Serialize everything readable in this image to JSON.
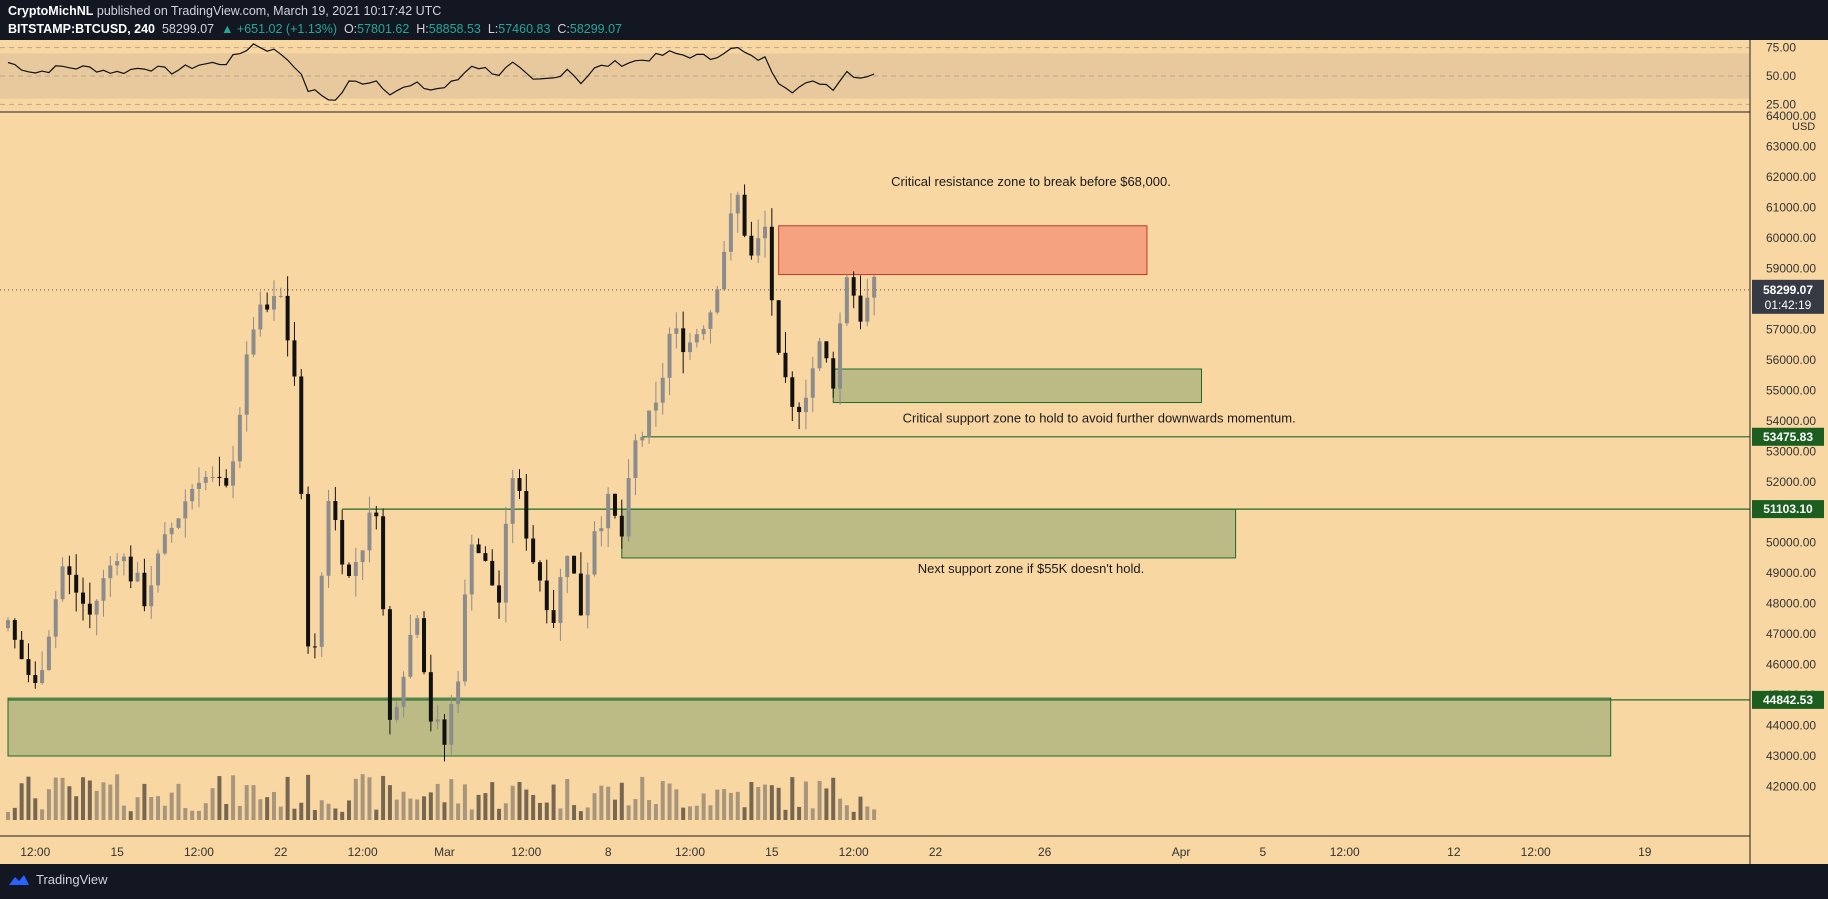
{
  "header": {
    "line1_author": "CryptoMichNL",
    "line1_rest": " published on TradingView.com, March 19, 2021 10:17:42 UTC",
    "symbol": "BITSTAMP:BTCUSD, 240",
    "last": "58299.07",
    "change": "+651.02 (+1.13%)",
    "o_label": "O:",
    "o_val": "57801.62",
    "h_label": "H:",
    "h_val": "58858.53",
    "l_label": "L:",
    "l_val": "57460.83",
    "c_label": "C:",
    "c_val": "58299.07"
  },
  "footer": {
    "brand": "TradingView"
  },
  "colors": {
    "background": "#f9d7a2",
    "resistance": "#f4a27f",
    "support": "#bcba85",
    "support_line": "#1e6b2a",
    "label_green": "#1b5e20",
    "current_price_tag": "#363a45"
  },
  "chart_data": {
    "type": "candlestick",
    "symbol": "BITSTAMP:BTCUSD",
    "interval": "240",
    "currency": "USD",
    "ylim": [
      40900,
      64200
    ],
    "y_ticks": [
      42000,
      43000,
      44000,
      45000,
      46000,
      47000,
      48000,
      49000,
      50000,
      51000,
      52000,
      53000,
      54000,
      55000,
      56000,
      57000,
      58000,
      59000,
      60000,
      61000,
      62000,
      63000,
      64000
    ],
    "x_ticks": [
      {
        "label": "12:00",
        "i": 4
      },
      {
        "label": "15",
        "i": 16
      },
      {
        "label": "12:00",
        "i": 28
      },
      {
        "label": "22",
        "i": 40
      },
      {
        "label": "12:00",
        "i": 52
      },
      {
        "label": "Mar",
        "i": 64
      },
      {
        "label": "12:00",
        "i": 76
      },
      {
        "label": "8",
        "i": 88
      },
      {
        "label": "12:00",
        "i": 100
      },
      {
        "label": "15",
        "i": 112
      },
      {
        "label": "12:00",
        "i": 124
      },
      {
        "label": "22",
        "i": 136
      },
      {
        "label": "26",
        "i": 152
      },
      {
        "label": "Apr",
        "i": 172
      },
      {
        "label": "5",
        "i": 184
      },
      {
        "label": "12:00",
        "i": 196
      },
      {
        "label": "12",
        "i": 212
      },
      {
        "label": "12:00",
        "i": 224
      },
      {
        "label": "19",
        "i": 240
      }
    ],
    "price_path": [
      [
        0,
        47200
      ],
      [
        4,
        45200
      ],
      [
        8,
        49200
      ],
      [
        12,
        47600
      ],
      [
        16,
        49800
      ],
      [
        20,
        48200
      ],
      [
        24,
        50500
      ],
      [
        28,
        52300
      ],
      [
        32,
        51600
      ],
      [
        36,
        57200
      ],
      [
        40,
        58000
      ],
      [
        42,
        55500
      ],
      [
        44,
        47000
      ],
      [
        45,
        46300
      ],
      [
        47,
        51600
      ],
      [
        50,
        48800
      ],
      [
        54,
        51300
      ],
      [
        56,
        44100
      ],
      [
        60,
        47900
      ],
      [
        62,
        44300
      ],
      [
        64,
        43400
      ],
      [
        66,
        45800
      ],
      [
        68,
        50300
      ],
      [
        72,
        48100
      ],
      [
        74,
        52300
      ],
      [
        77,
        49500
      ],
      [
        80,
        47600
      ],
      [
        82,
        49900
      ],
      [
        84,
        47800
      ],
      [
        86,
        50600
      ],
      [
        88,
        51200
      ],
      [
        90,
        50200
      ],
      [
        92,
        53200
      ],
      [
        95,
        54300
      ],
      [
        97,
        56800
      ],
      [
        100,
        56600
      ],
      [
        103,
        57700
      ],
      [
        105,
        59700
      ],
      [
        107,
        61300
      ],
      [
        109,
        59300
      ],
      [
        111,
        60300
      ],
      [
        113,
        55800
      ],
      [
        115,
        54200
      ],
      [
        117,
        55100
      ],
      [
        119,
        56400
      ],
      [
        121,
        55400
      ],
      [
        123,
        58900
      ],
      [
        125,
        57500
      ],
      [
        127,
        58300
      ]
    ],
    "current_price": 58299.07,
    "current_price_label": "58299.07",
    "countdown": "01:42:19",
    "zones": [
      {
        "kind": "resistance",
        "from_i": 113,
        "to_i": 167,
        "low": 58800,
        "high": 60400
      },
      {
        "kind": "support",
        "from_i": 121,
        "to_i": 175,
        "low": 54600,
        "high": 55700
      },
      {
        "kind": "support",
        "from_i": 90,
        "to_i": 180,
        "low": 49500,
        "high": 51100
      },
      {
        "kind": "support",
        "from_i": 0,
        "to_i": 235,
        "low": 43000,
        "high": 44900
      }
    ],
    "levels": [
      {
        "price": 53475.83,
        "label": "53475.83",
        "from_i": 93
      },
      {
        "price": 51103.1,
        "label": "51103.10",
        "from_i": 49
      },
      {
        "price": 44842.53,
        "label": "44842.53",
        "from_i": 0
      }
    ],
    "annotations": [
      {
        "text": "Critical resistance zone to break before $68,000.",
        "i": 150,
        "price": 61700
      },
      {
        "text": "Critical support zone to hold to avoid further downwards momentum.",
        "i": 160,
        "price": 53950
      },
      {
        "text": "Next support zone if $55K doesn't hold.",
        "i": 150,
        "price": 49000
      }
    ],
    "rsi": {
      "ylim": [
        20,
        80
      ],
      "ticks": [
        {
          "v": 75,
          "label": "75.00"
        },
        {
          "v": 50,
          "label": "50.00"
        },
        {
          "v": 25,
          "label": "25.00"
        }
      ],
      "band": [
        30,
        70
      ],
      "path": [
        [
          0,
          62
        ],
        [
          4,
          53
        ],
        [
          8,
          58
        ],
        [
          12,
          57
        ],
        [
          16,
          53
        ],
        [
          20,
          58
        ],
        [
          24,
          54
        ],
        [
          28,
          60
        ],
        [
          32,
          62
        ],
        [
          36,
          78
        ],
        [
          40,
          70
        ],
        [
          42,
          60
        ],
        [
          44,
          38
        ],
        [
          46,
          33
        ],
        [
          48,
          28
        ],
        [
          50,
          44
        ],
        [
          54,
          46
        ],
        [
          56,
          36
        ],
        [
          60,
          42
        ],
        [
          62,
          38
        ],
        [
          64,
          40
        ],
        [
          66,
          47
        ],
        [
          68,
          60
        ],
        [
          72,
          52
        ],
        [
          74,
          60
        ],
        [
          77,
          45
        ],
        [
          80,
          48
        ],
        [
          82,
          57
        ],
        [
          84,
          45
        ],
        [
          86,
          56
        ],
        [
          88,
          60
        ],
        [
          92,
          63
        ],
        [
          95,
          67
        ],
        [
          97,
          70
        ],
        [
          100,
          68
        ],
        [
          103,
          66
        ],
        [
          105,
          72
        ],
        [
          107,
          74
        ],
        [
          109,
          66
        ],
        [
          111,
          65
        ],
        [
          113,
          46
        ],
        [
          115,
          38
        ],
        [
          117,
          42
        ],
        [
          119,
          45
        ],
        [
          121,
          40
        ],
        [
          123,
          54
        ],
        [
          125,
          49
        ],
        [
          127,
          53
        ]
      ]
    }
  }
}
